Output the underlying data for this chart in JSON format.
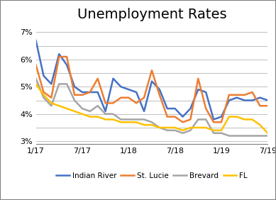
{
  "title": "Unemployment Rates",
  "x_labels": [
    "1/17",
    "7/17",
    "1/18",
    "7/18",
    "1/19",
    "7/19"
  ],
  "x_ticks": [
    0,
    6,
    12,
    18,
    24,
    30
  ],
  "series": {
    "Indian River": {
      "color": "#4472C4",
      "values": [
        6.7,
        5.4,
        5.1,
        6.2,
        5.8,
        5.0,
        4.8,
        4.8,
        4.8,
        4.1,
        5.3,
        5.0,
        4.9,
        4.8,
        4.1,
        5.2,
        4.9,
        4.2,
        4.2,
        3.9,
        4.2,
        4.9,
        4.8,
        3.8,
        3.9,
        4.5,
        4.6,
        4.5,
        4.5,
        4.6,
        4.5
      ]
    },
    "St. Lucie": {
      "color": "#ED7D31",
      "values": [
        5.8,
        4.8,
        4.6,
        6.1,
        6.1,
        4.7,
        4.7,
        4.8,
        5.3,
        4.4,
        4.4,
        4.6,
        4.6,
        4.4,
        4.6,
        5.6,
        4.7,
        3.9,
        3.9,
        3.7,
        3.8,
        5.3,
        4.2,
        3.7,
        3.7,
        4.7,
        4.7,
        4.7,
        4.8,
        4.3,
        4.3
      ]
    },
    "Brevard": {
      "color": "#A5A5A5",
      "values": [
        5.3,
        4.6,
        4.3,
        5.1,
        5.1,
        4.5,
        4.2,
        4.1,
        4.3,
        4.0,
        4.0,
        3.8,
        3.8,
        3.8,
        3.8,
        3.7,
        3.5,
        3.4,
        3.4,
        3.3,
        3.4,
        3.8,
        3.8,
        3.3,
        3.3,
        3.2,
        3.2,
        3.2,
        3.2,
        3.2,
        3.2
      ]
    },
    "FL": {
      "color": "#FFC000",
      "values": [
        5.1,
        4.7,
        4.4,
        4.3,
        4.2,
        4.1,
        4.0,
        3.9,
        3.9,
        3.8,
        3.8,
        3.7,
        3.7,
        3.7,
        3.6,
        3.6,
        3.5,
        3.5,
        3.5,
        3.4,
        3.5,
        3.5,
        3.5,
        3.4,
        3.4,
        3.9,
        3.9,
        3.8,
        3.8,
        3.6,
        3.3
      ]
    }
  },
  "ylim": [
    2.9,
    7.3
  ],
  "yticks": [
    3.0,
    3.5,
    4.0,
    4.5,
    5.0,
    5.5,
    6.0,
    6.5,
    7.0
  ],
  "ytick_labels": [
    "3%",
    "",
    "4%",
    "",
    "5%",
    "",
    "6%",
    "",
    "7%"
  ],
  "legend_order": [
    "Indian River",
    "St. Lucie",
    "Brevard",
    "FL"
  ],
  "background_color": "#FFFFFF",
  "grid_color": "#BFBFBF",
  "border_color": "#7F7F7F",
  "title_fontsize": 14,
  "tick_fontsize": 8,
  "legend_fontsize": 7.5,
  "line_width": 1.8
}
